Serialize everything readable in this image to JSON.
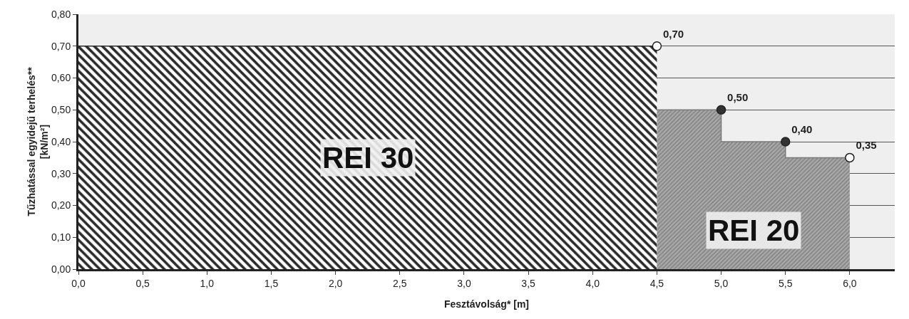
{
  "chart_data": {
    "type": "step",
    "xlabel": "Fesztávolság* [m]",
    "ylabel": "Tűzhatással egyidejű terhelés**\n[kN/m²]",
    "xlim": [
      0,
      6.35
    ],
    "ylim": [
      0,
      0.8
    ],
    "xticks": [
      {
        "value": 0,
        "label": "0,0"
      },
      {
        "value": 0.5,
        "label": "0,5"
      },
      {
        "value": 1,
        "label": "1,0"
      },
      {
        "value": 1.5,
        "label": "1,5"
      },
      {
        "value": 2,
        "label": "2,0"
      },
      {
        "value": 2.5,
        "label": "2,5"
      },
      {
        "value": 3,
        "label": "3,0"
      },
      {
        "value": 3.5,
        "label": "3,5"
      },
      {
        "value": 4,
        "label": "4,0"
      },
      {
        "value": 4.5,
        "label": "4,5"
      },
      {
        "value": 5,
        "label": "5,0"
      },
      {
        "value": 5.5,
        "label": "5,5"
      },
      {
        "value": 6,
        "label": "6,0"
      }
    ],
    "yticks": [
      {
        "value": 0,
        "label": "0,00"
      },
      {
        "value": 0.1,
        "label": "0,10"
      },
      {
        "value": 0.2,
        "label": "0,20"
      },
      {
        "value": 0.3,
        "label": "0,30"
      },
      {
        "value": 0.4,
        "label": "0,40"
      },
      {
        "value": 0.5,
        "label": "0,50"
      },
      {
        "value": 0.6,
        "label": "0,60"
      },
      {
        "value": 0.7,
        "label": "0,70"
      },
      {
        "value": 0.8,
        "label": "0,80"
      }
    ],
    "grid": "y",
    "legend": false,
    "series": [
      {
        "name": "REI 30",
        "color": "#2a2a2a",
        "x": [
          0,
          4.5
        ],
        "values": [
          0.7,
          0.7
        ]
      },
      {
        "name": "REI 20",
        "color": "#7a7a7a",
        "x": [
          4.5,
          5,
          5.5,
          6
        ],
        "values": [
          0.5,
          0.4,
          0.35,
          0.35
        ]
      },
      {
        "type": "scatter",
        "marker": "circle",
        "x": [
          4.5,
          5,
          5.5,
          6
        ],
        "values": [
          0.7,
          0.5,
          0.4,
          0.35
        ],
        "colors": [
          "#ffffff",
          "#333333",
          "#333333",
          "#ffffff"
        ],
        "value_labels": [
          "0,70",
          "0,50",
          "0,40",
          "0,35"
        ]
      }
    ]
  }
}
